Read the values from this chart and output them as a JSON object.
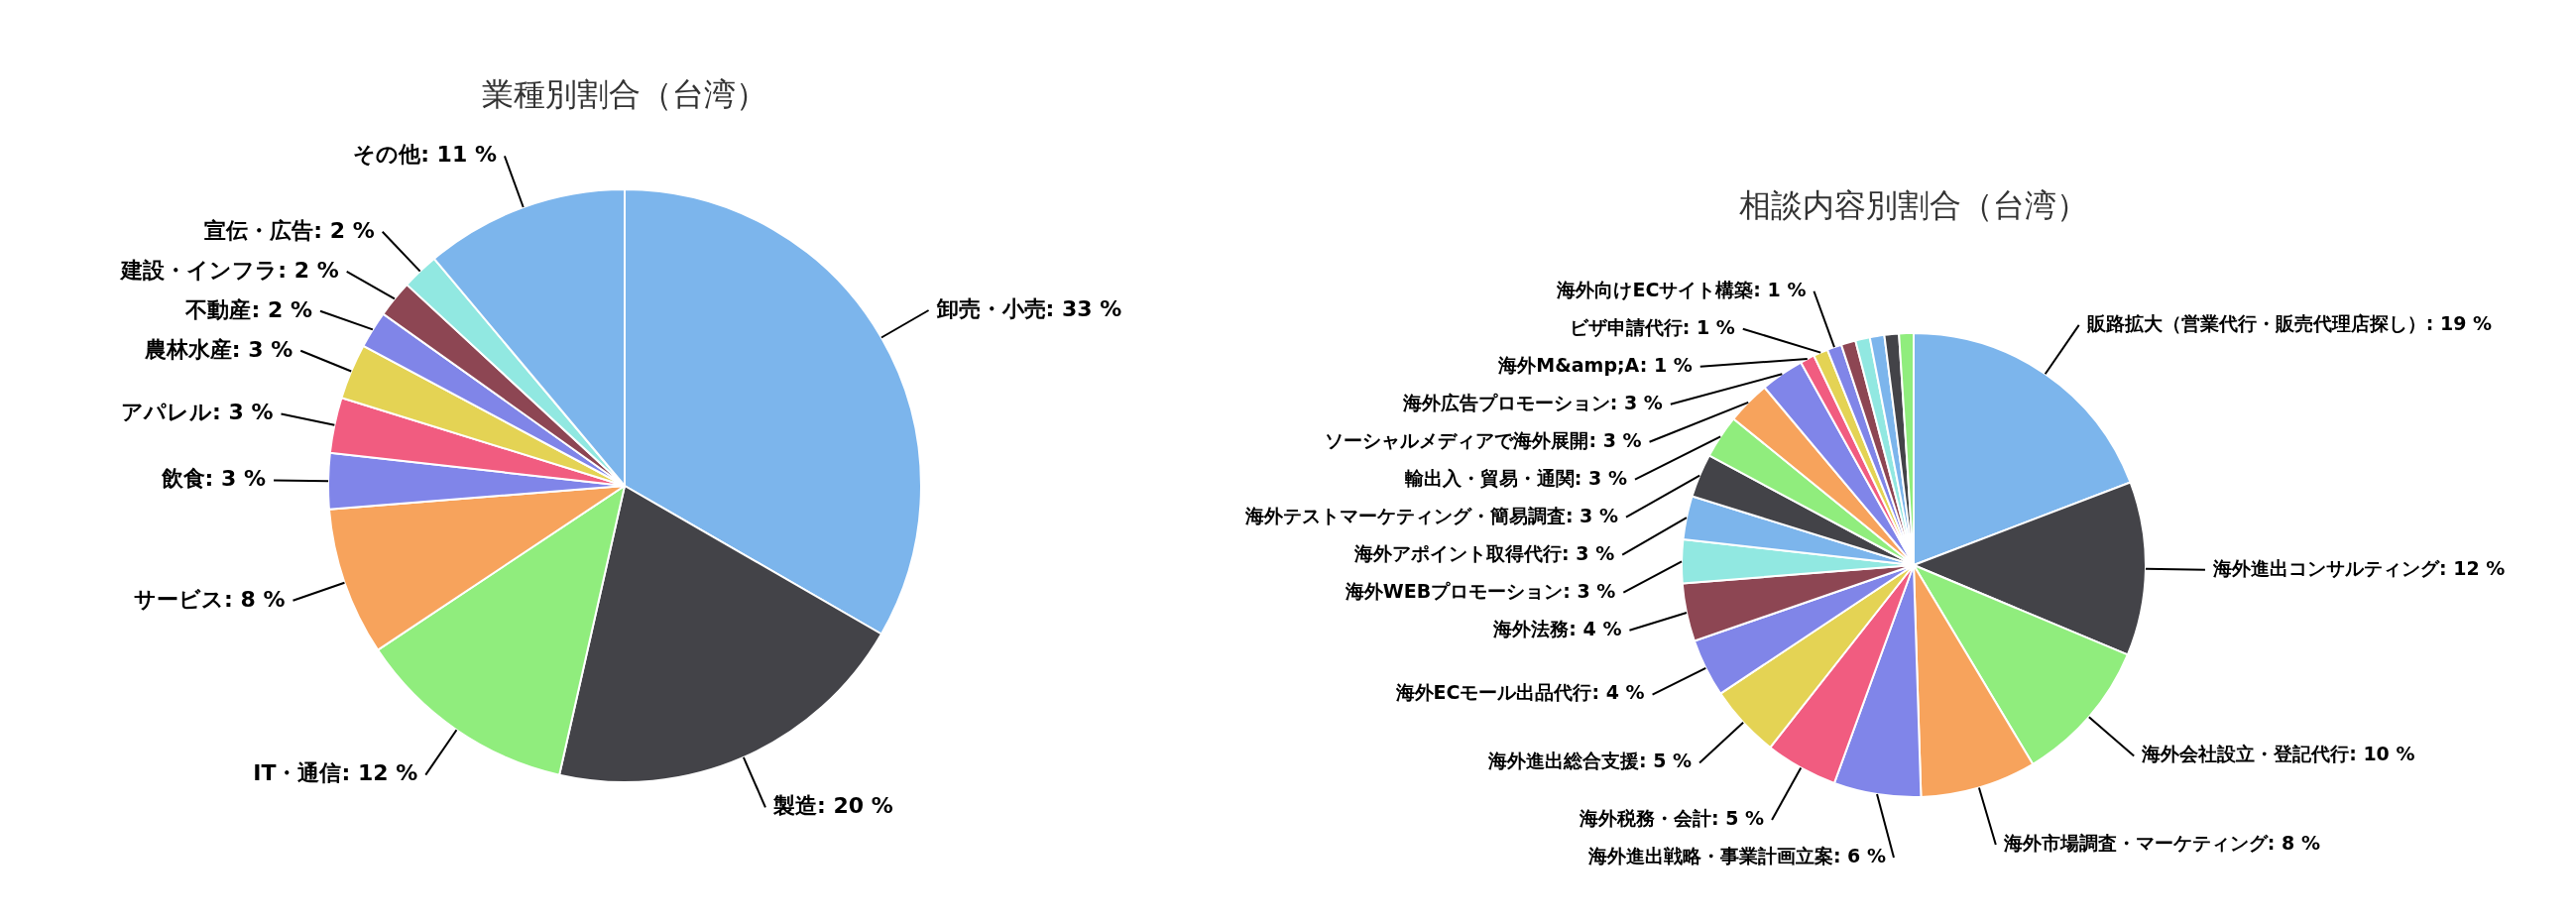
{
  "chart_data": [
    {
      "type": "pie",
      "title": "業種別割合（台湾）",
      "categories": [
        "卸売・小売",
        "製造",
        "IT・通信",
        "サービス",
        "飲食",
        "アパレル",
        "農林水産",
        "不動産",
        "建設・インフラ",
        "宣伝・広告",
        "その他"
      ],
      "values": [
        33,
        20,
        12,
        8,
        3,
        3,
        3,
        2,
        2,
        2,
        11
      ],
      "value_labels": [
        "33 %",
        "20 %",
        "12 %",
        "8 %",
        "3 %",
        "3 %",
        "3 %",
        "2 %",
        "2 %",
        "2 %",
        "11 %"
      ],
      "colors": [
        "#7cb5ec",
        "#434348",
        "#90ed7d",
        "#f7a35c",
        "#8085e9",
        "#f15c80",
        "#e4d354",
        "#8085e8",
        "#8d4653",
        "#91e8e1",
        "#7cb5ec"
      ],
      "legend": false
    },
    {
      "type": "pie",
      "title": "相談内容別割合（台湾）",
      "categories": [
        "販路拡大（営業代行・販売代理店探し）",
        "海外進出コンサルティング",
        "海外会社設立・登記代行",
        "海外市場調査・マーケティング",
        "海外進出戦略・事業計画立案",
        "海外税務・会計",
        "海外進出総合支援",
        "海外ECモール出品代行",
        "海外法務",
        "海外WEBプロモーション",
        "海外アポイント取得代行",
        "海外テストマーケティング・簡易調査",
        "輸出入・貿易・通関",
        "ソーシャルメディアで海外展開",
        "海外広告プロモーション",
        "海外M&amp;A",
        "ビザ申請代行",
        "海外向けECサイト構築",
        null,
        null,
        null,
        null,
        null
      ],
      "values": [
        19,
        12,
        10,
        8,
        6,
        5,
        5,
        4,
        4,
        3,
        3,
        3,
        3,
        3,
        3,
        1,
        1,
        1,
        1,
        1,
        1,
        1,
        1
      ],
      "value_labels": [
        "19 %",
        "12 %",
        "10 %",
        "8 %",
        "6 %",
        "5 %",
        "5 %",
        "4 %",
        "4 %",
        "3 %",
        "3 %",
        "3 %",
        "3 %",
        "3 %",
        "3 %",
        "1 %",
        "1 %",
        "1 %",
        null,
        null,
        null,
        null,
        null
      ],
      "colors": [
        "#7cb5ec",
        "#434348",
        "#90ed7d",
        "#f7a35c",
        "#8085e9",
        "#f15c80",
        "#e4d354",
        "#8085e8",
        "#8d4653",
        "#91e8e1",
        "#7cb5ec",
        "#434348",
        "#90ed7d",
        "#f7a35c",
        "#8085e9",
        "#f15c80",
        "#e4d354",
        "#8085e8",
        "#8d4653",
        "#91e8e1",
        "#7cb5ec",
        "#434348",
        "#90ed7d"
      ],
      "legend": false
    }
  ]
}
